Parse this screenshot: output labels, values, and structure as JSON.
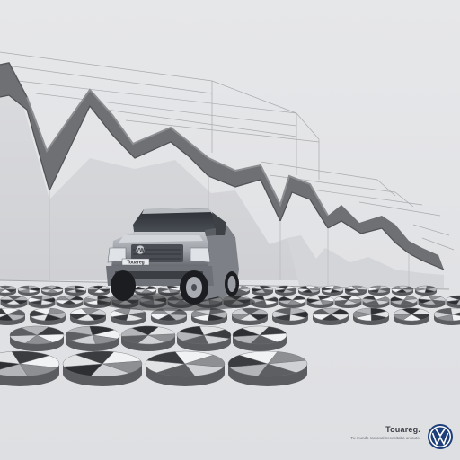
{
  "ad": {
    "model_name": "Touareg.",
    "tagline": "Tu mundo racional necesitaba un auto.",
    "badge_text": "Touareg",
    "logo_icon": "volkswagen-logo-icon"
  },
  "colors": {
    "background": "#e3e4e6",
    "chart_dark": "#6e6f72",
    "chart_mid": "#9a9b9e",
    "chart_light": "#d2d3d6",
    "vw_blue": "#1d3f7a"
  }
}
